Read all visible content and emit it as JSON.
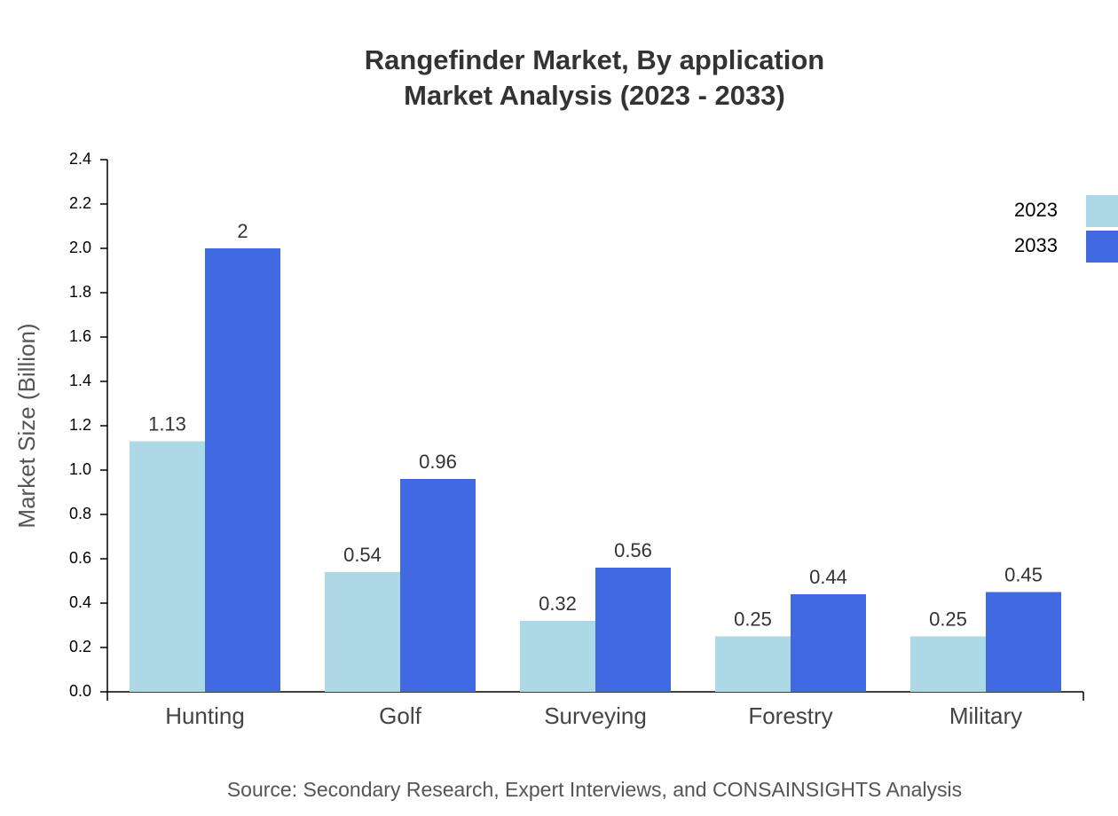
{
  "chart_data": {
    "type": "bar",
    "title": "Rangefinder Market, By application",
    "subtitle": "Market Analysis (2023 - 2033)",
    "y_label": "Market Size (Billion)",
    "source": "Source: Secondary Research, Expert Interviews, and CONSAINSIGHTS Analysis",
    "categories": [
      "Hunting",
      "Golf",
      "Surveying",
      "Forestry",
      "Military"
    ],
    "series": [
      {
        "name": "2023",
        "color": "#add8e6",
        "values": [
          1.13,
          0.54,
          0.32,
          0.25,
          0.25
        ]
      },
      {
        "name": "2033",
        "color": "#4169e1",
        "values": [
          2,
          0.96,
          0.56,
          0.44,
          0.45
        ]
      }
    ],
    "ylim": [
      0,
      2.4
    ],
    "yticks": [
      {
        "value": 0,
        "label": "0.0"
      },
      0.2,
      0.4,
      0.6,
      0.8,
      {
        "value": 1,
        "label": "1.0"
      },
      1.2,
      1.4,
      1.6,
      1.8,
      {
        "value": 2,
        "label": "2.0"
      },
      2.2,
      2.4
    ],
    "legend": "top-right",
    "grid": false
  }
}
